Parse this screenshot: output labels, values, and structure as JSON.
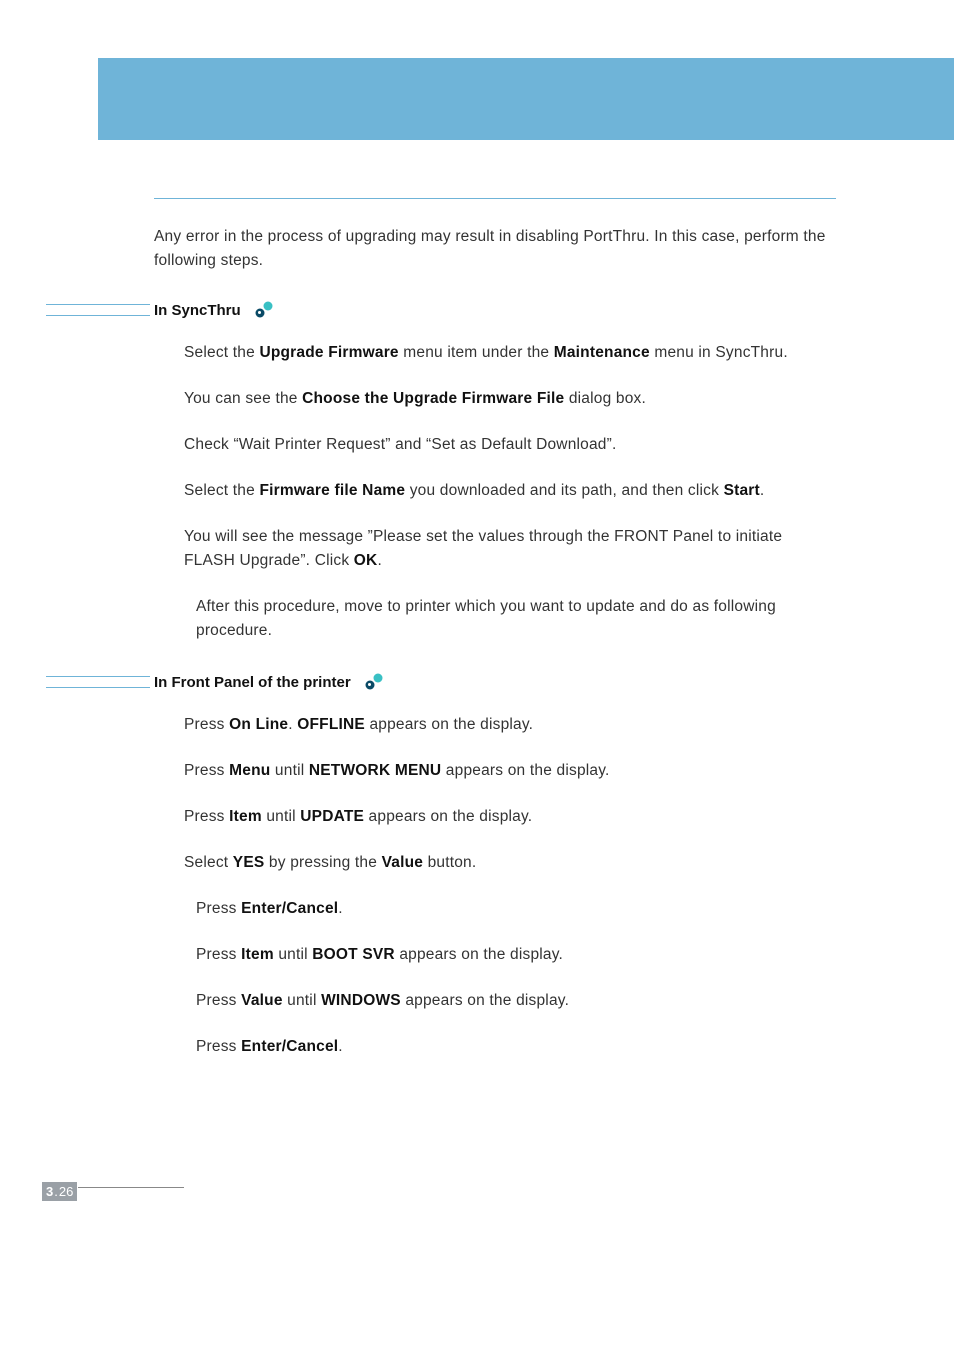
{
  "colors": {
    "header_bar": "#6fb4d8",
    "rule": "#6fb4d8",
    "text": "#333333",
    "bold": "#111111",
    "footer_box": "#9aa0a6",
    "icon_dark": "#0a4a66",
    "icon_light": "#39c0c4"
  },
  "intro": "Any error in the process of upgrading may result in disabling PortThru. In this case, perform the following steps.",
  "section1": {
    "title": "In SyncThru",
    "steps": [
      "Select the <b>Upgrade Firmware</b> menu item under the <b>Maintenance</b> menu in SyncThru.",
      "You can see the <b>Choose the Upgrade Firmware File</b> dialog box.",
      "Check “Wait Printer Request” and “Set as Default Download”.",
      "Select the <b>Firmware file Name</b> you downloaded and its path, and then click <b>Start</b>.",
      "You will see the message ”Please set the values through the FRONT Panel to initiate FLASH Upgrade”. Click <b>OK</b>."
    ],
    "note": "After this procedure, move to printer which you want to update and do as following procedure."
  },
  "section2": {
    "title": "In Front Panel of the printer",
    "steps": [
      "Press <b>On Line</b>. <b>OFFLINE</b> appears on the display.",
      "Press <b>Menu</b> until <b>NETWORK MENU</b> appears on the display.",
      "Press <b>Item</b> until <b>UPDATE</b> appears on the display.",
      "Select <b>YES</b> by pressing the <b>Value</b> button.",
      "Press <b>Enter/Cancel</b>.",
      "Press <b>Item</b> until <b>BOOT SVR</b> appears on the display.",
      "Press <b>Value</b> until <b>WINDOWS</b> appears on the display.",
      "Press <b>Enter/Cancel</b>."
    ]
  },
  "footer": {
    "chapter": "3",
    "page": "26"
  }
}
